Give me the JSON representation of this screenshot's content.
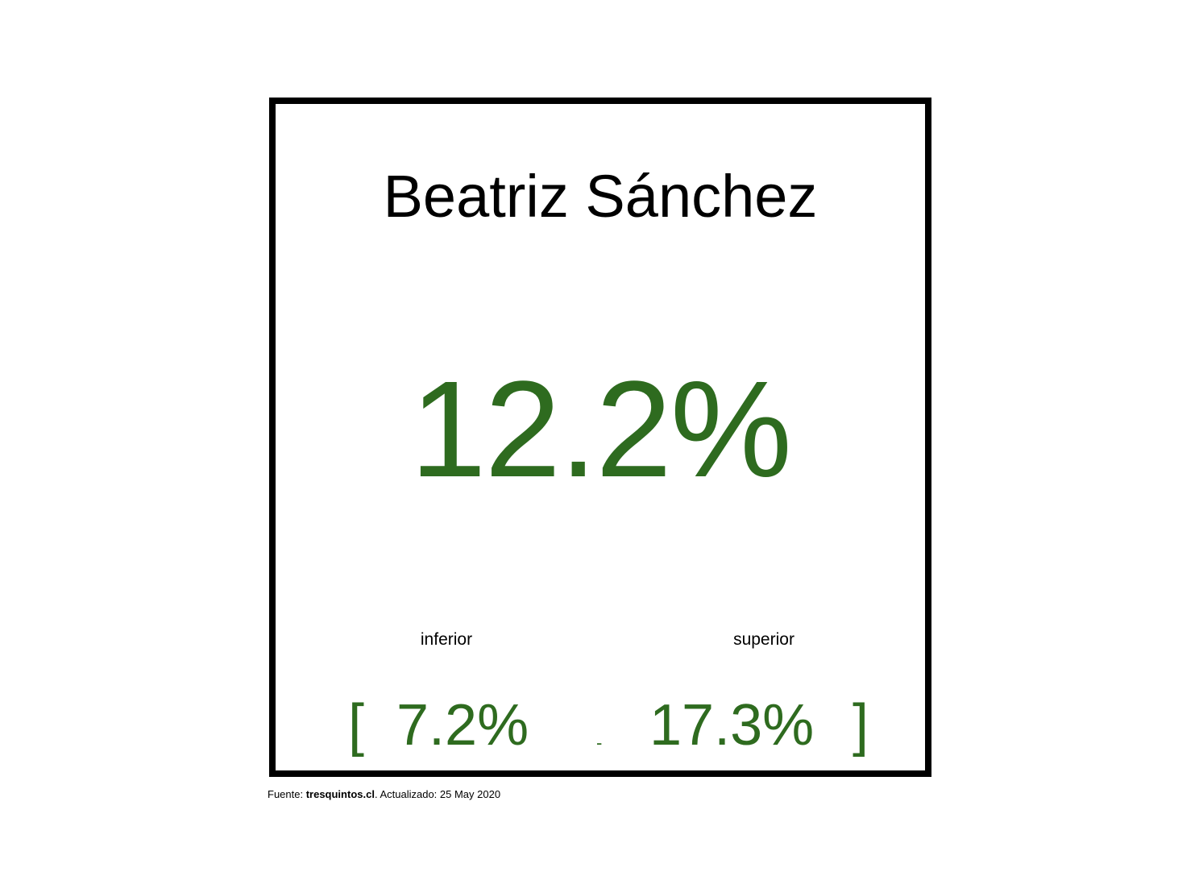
{
  "card": {
    "name": "Beatriz Sánchez",
    "value": "12.2%",
    "lower_label": "inferior",
    "upper_label": "superior",
    "bracket_open": "[",
    "lower_value": "7.2%",
    "dash": "-",
    "upper_value": "17.3%",
    "bracket_close": "]"
  },
  "footer": {
    "source_prefix": "Fuente: ",
    "source_name": "tresquintos.cl",
    "updated_text": ". Actualizado: 25 May 2020"
  },
  "colors": {
    "value_green": "#2e6b1f",
    "border": "#000000"
  }
}
